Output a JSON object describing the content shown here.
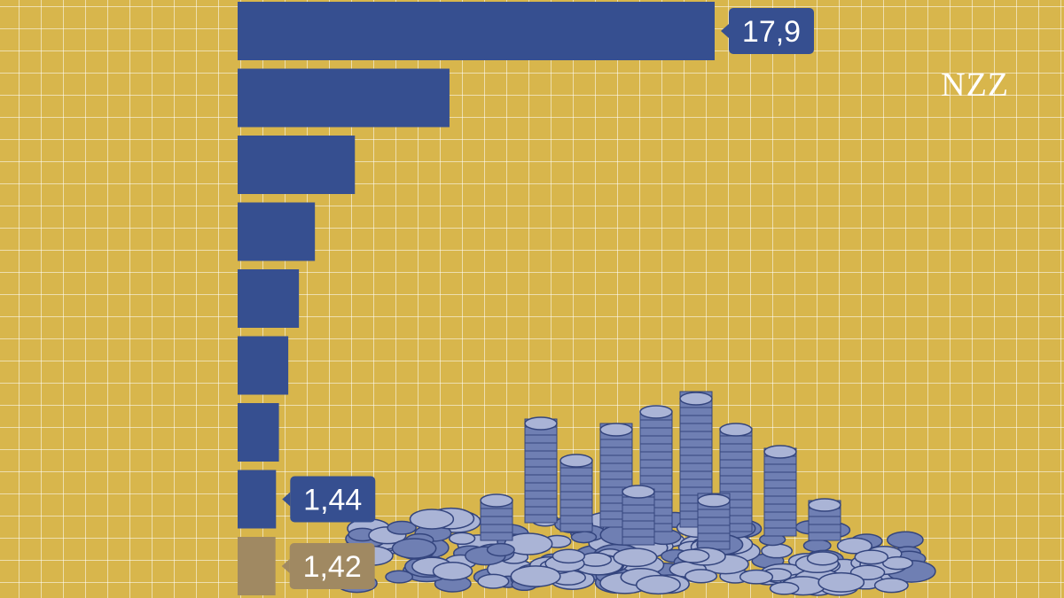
{
  "brand": {
    "logo_text": "NZZ"
  },
  "colors": {
    "background": "#d8b64c",
    "bar_primary": "#364f90",
    "bar_highlight": "#a08962",
    "label_text": "#ffffff"
  },
  "illustration": {
    "name": "coin-pile-illustration"
  },
  "chart_data": {
    "type": "bar",
    "orientation": "horizontal",
    "title": "",
    "xlabel": "",
    "ylabel": "",
    "grid": true,
    "values": [
      17.9,
      7.95,
      4.4,
      2.9,
      2.3,
      1.9,
      1.55,
      1.44,
      1.42
    ],
    "labels": [
      "17,9",
      "",
      "",
      "",
      "",
      "",
      "",
      "1,44",
      "1,42"
    ],
    "highlight_index": 8,
    "xlim": [
      0,
      17.9
    ]
  }
}
